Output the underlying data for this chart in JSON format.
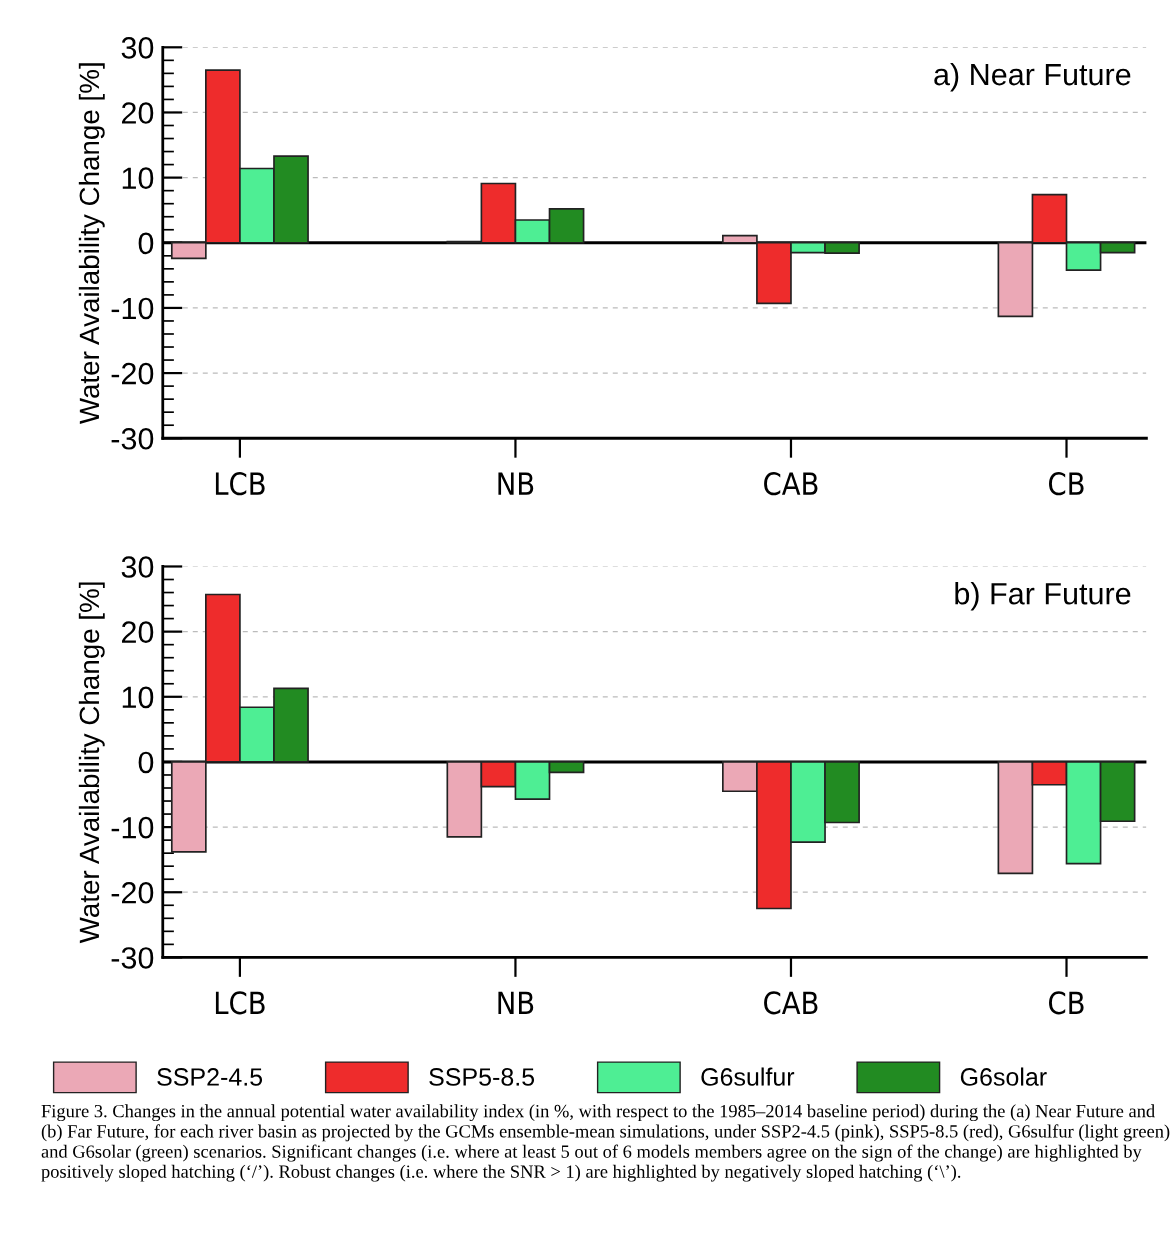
{
  "chart_data": [
    {
      "type": "bar",
      "title": "a) Near Future",
      "ylabel": "Water Availability Change [%]",
      "categories": [
        "LCB",
        "NB",
        "CAB",
        "CB"
      ],
      "ylim": [
        -30,
        30
      ],
      "yticks": [
        -30,
        -20,
        -10,
        0,
        10,
        20,
        30
      ],
      "grid": "y",
      "legend": false,
      "series": [
        {
          "color": "#eba8b6",
          "values": [
            -2.4,
            0.2,
            1.1,
            -11.3
          ]
        },
        {
          "color": "#ee2c2c",
          "values": [
            26.5,
            9.1,
            -9.3,
            7.4
          ]
        },
        {
          "color": "#4eee94",
          "values": [
            11.4,
            3.5,
            -1.5,
            -4.2
          ]
        },
        {
          "color": "#228b22",
          "values": [
            13.3,
            5.2,
            -1.6,
            -1.5
          ]
        }
      ],
      "ref_lines": [
        {
          "axis": "y",
          "value": 0,
          "color": "#000000"
        }
      ]
    },
    {
      "type": "bar",
      "title": "b) Far Future",
      "ylabel": "Water Availability Change [%]",
      "categories": [
        "LCB",
        "NB",
        "CAB",
        "CB"
      ],
      "ylim": [
        -30,
        30
      ],
      "yticks": [
        -30,
        -20,
        -10,
        0,
        10,
        20,
        30
      ],
      "grid": "y",
      "legend": "bottom",
      "series": [
        {
          "name": "SSP2-4.5",
          "color": "#eba8b6",
          "values": [
            -13.8,
            -11.5,
            -4.5,
            -17.1
          ]
        },
        {
          "name": "SSP5-8.5",
          "color": "#ee2c2c",
          "values": [
            25.7,
            -3.8,
            -22.5,
            -3.5
          ]
        },
        {
          "name": "G6sulfur",
          "color": "#4eee94",
          "values": [
            8.4,
            -5.7,
            -12.3,
            -15.6
          ]
        },
        {
          "name": "G6solar",
          "color": "#228b22",
          "values": [
            11.3,
            -1.6,
            -9.3,
            -9.1
          ]
        }
      ],
      "ref_lines": [
        {
          "axis": "y",
          "value": 0,
          "color": "#000000"
        }
      ],
      "annotations": [
        "Figure 3. Changes in the annual potential water availability index (in %, with respect to the 1985–2014 baseline period) during the (a) Near Future and (b) Far Future, for each river basin as projected by the GCMs ensemble-mean simulations, under SSP2-4.5 (pink), SSP5-8.5 (red), G6sulfur (light green) and G6solar (green) scenarios. Significant changes (i.e. where at least 5 out of 6 models members agree on the sign of the change) are highlighted by positively sloped hatching (‘/’). Robust changes (i.e. where the SNR > 1) are highlighted by negatively sloped hatching (‘\\’)."
      ]
    }
  ]
}
